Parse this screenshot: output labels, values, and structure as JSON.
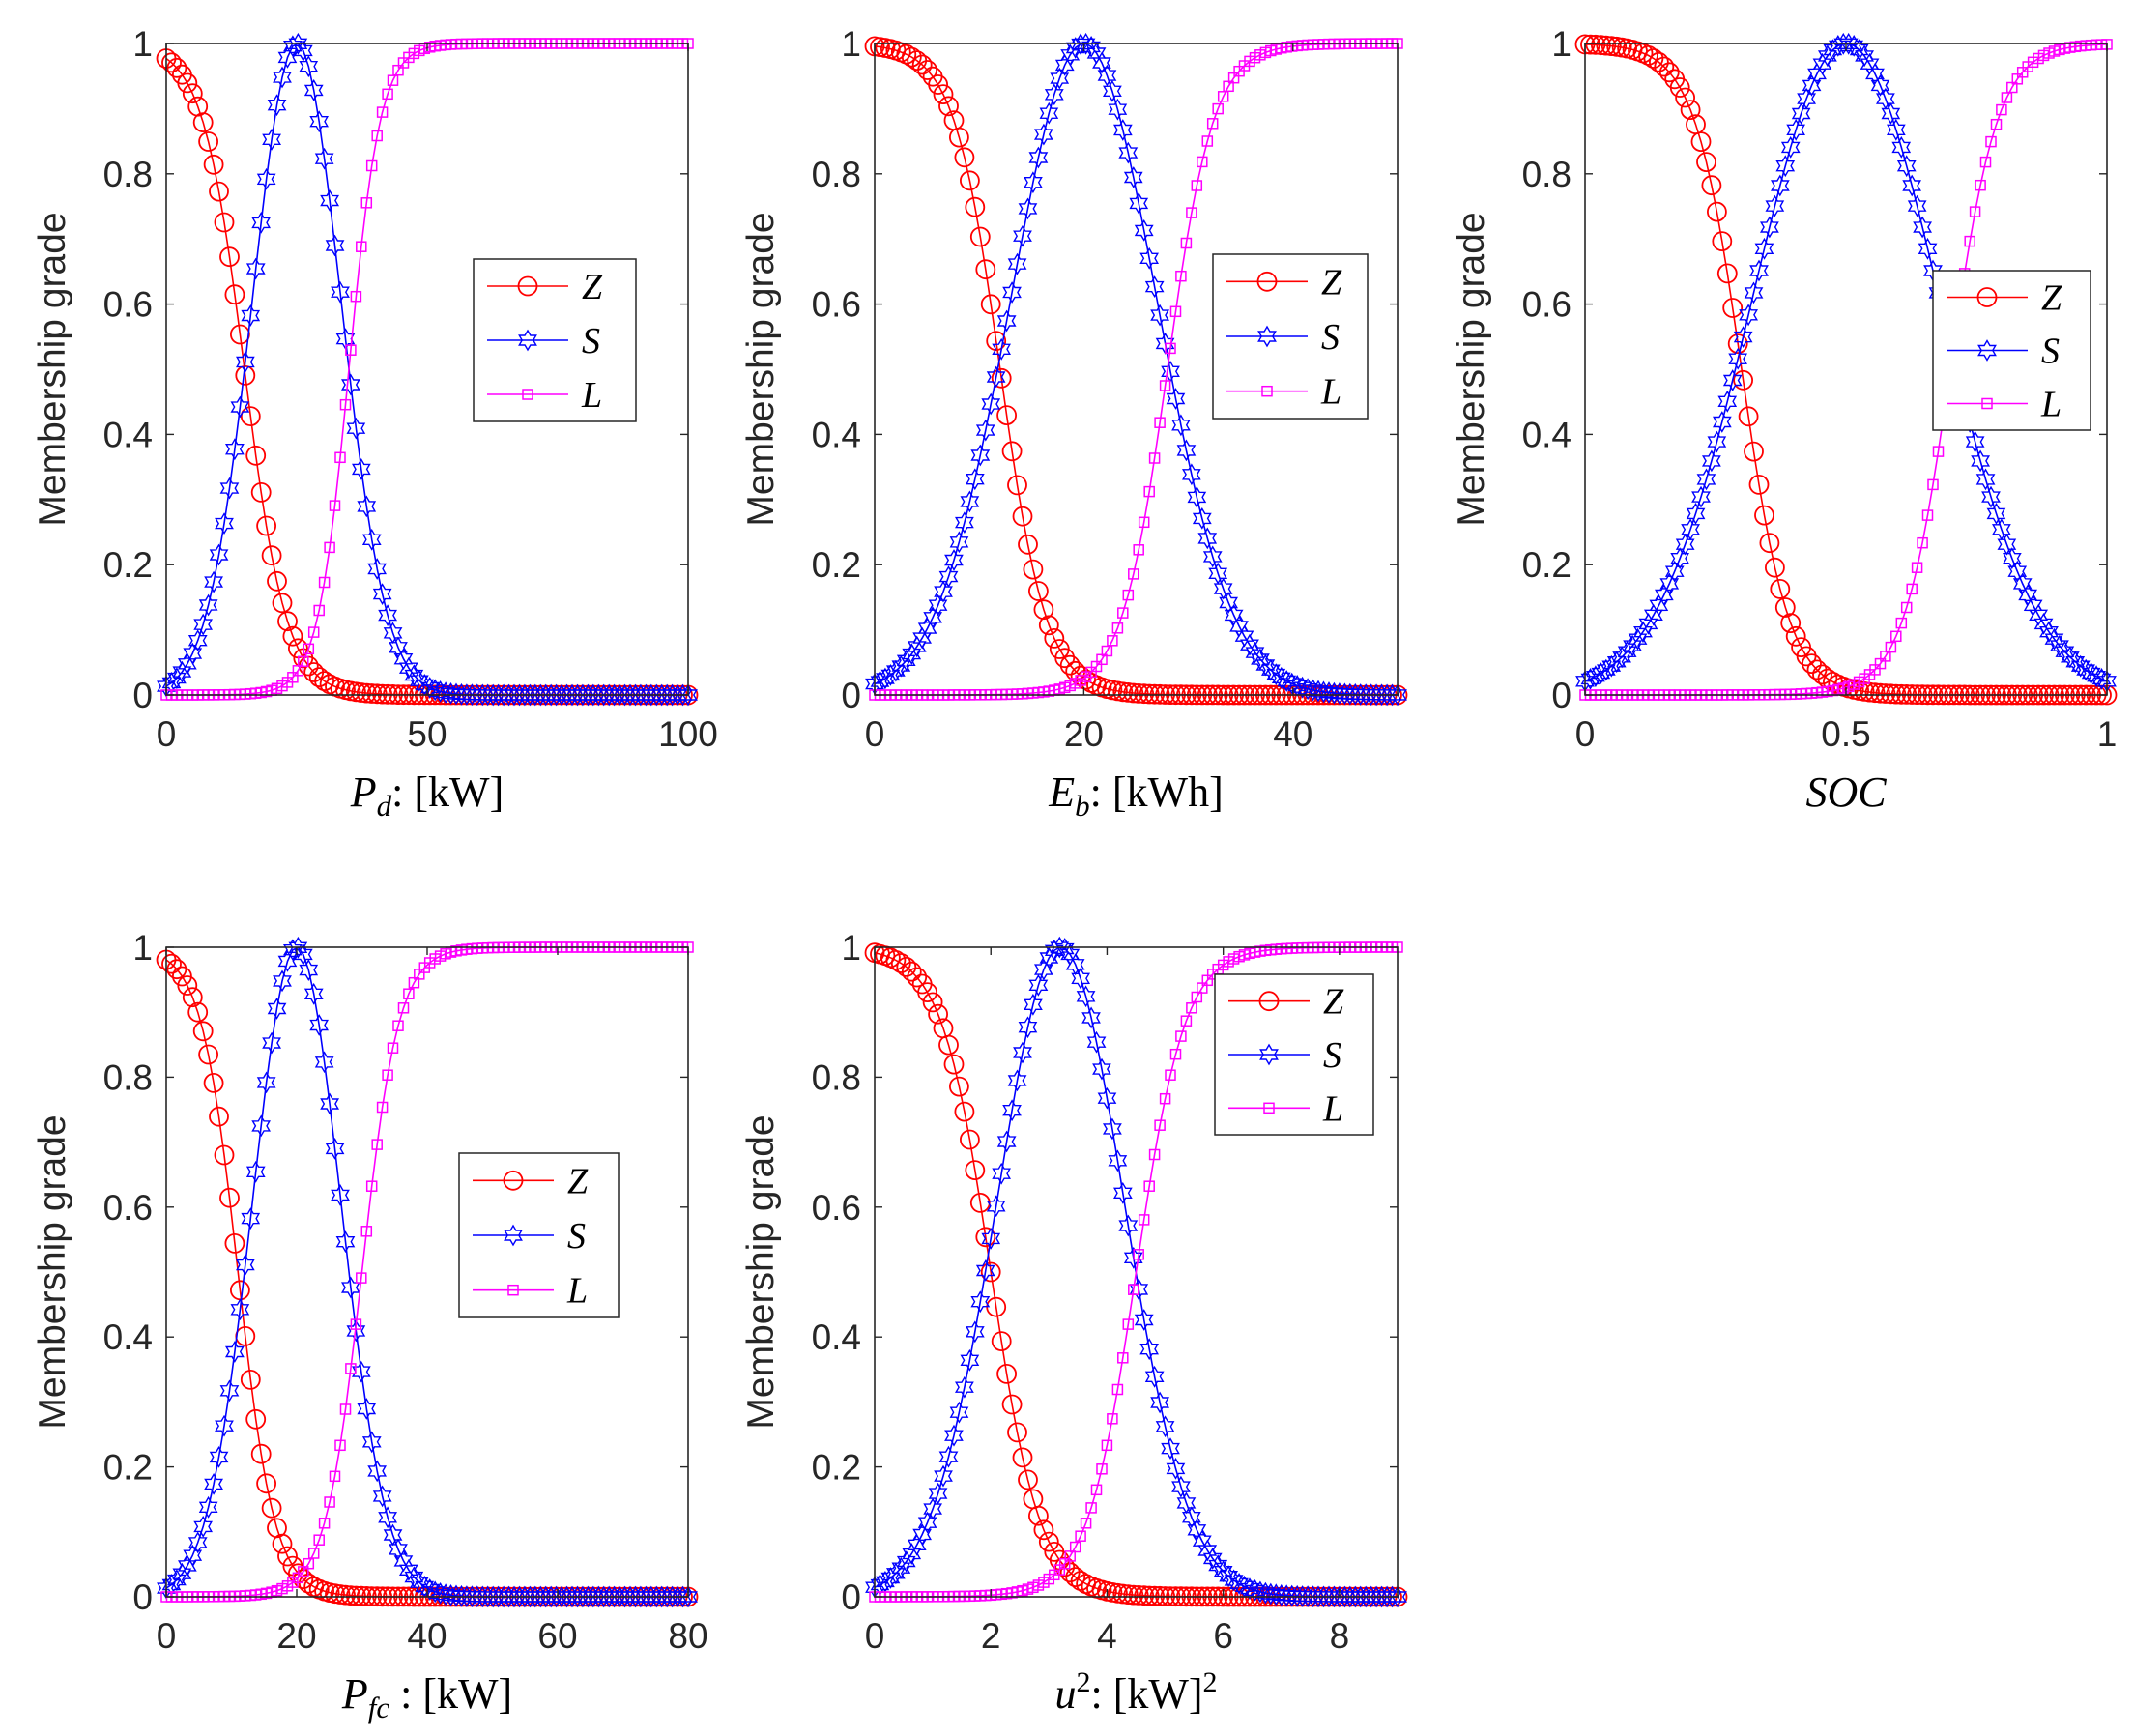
{
  "colors": {
    "Z": "#ff0000",
    "S": "#0000ff",
    "L": "#ff00ff",
    "axes": "#262626"
  },
  "chart_data": [
    {
      "type": "line",
      "title": "",
      "ylabel": "Membership grade",
      "xlabel": {
        "symbol": "P",
        "sub": "d",
        "rest": ": [kW]"
      },
      "xlim": [
        0,
        100
      ],
      "ylim": [
        0,
        1
      ],
      "xticks": [
        0,
        50,
        100
      ],
      "xtick_labels": [
        "0",
        "50",
        "100"
      ],
      "yticks": [
        0,
        0.2,
        0.4,
        0.6,
        0.8,
        1
      ],
      "ytick_labels": [
        "0",
        "0.2",
        "0.4",
        "0.6",
        "0.8",
        "1"
      ],
      "grid": false,
      "legend_position": "center-right",
      "series": [
        {
          "name": "Z",
          "marker": "circle",
          "function": "zmf",
          "params": [
            0,
            15,
            4
          ],
          "n_points": 100
        },
        {
          "name": "S",
          "marker": "hexagram",
          "function": "gaussmf",
          "params": [
            25,
            8.5
          ],
          "n_points": 100
        },
        {
          "name": "L",
          "marker": "square",
          "function": "smf",
          "params": [
            0,
            35,
            3
          ],
          "n_points": 100
        }
      ]
    },
    {
      "type": "line",
      "title": "",
      "ylabel": "Membership grade",
      "xlabel": {
        "symbol": "E",
        "sub": "b",
        "rest": ": [kWh]"
      },
      "xlim": [
        0,
        50
      ],
      "ylim": [
        0,
        1
      ],
      "xticks": [
        0,
        20,
        40
      ],
      "xtick_labels": [
        "0",
        "20",
        "40"
      ],
      "yticks": [
        0,
        0.2,
        0.4,
        0.6,
        0.8,
        1
      ],
      "ytick_labels": [
        "0",
        "0.2",
        "0.4",
        "0.6",
        "0.8",
        "1"
      ],
      "grid": false,
      "legend_position": "center-right",
      "series": [
        {
          "name": "Z",
          "marker": "circle",
          "function": "zmf",
          "params": [
            0,
            12,
            2.2
          ],
          "n_points": 100
        },
        {
          "name": "S",
          "marker": "hexagram",
          "function": "gaussmf",
          "params": [
            20,
            7
          ],
          "n_points": 100
        },
        {
          "name": "L",
          "marker": "square",
          "function": "smf",
          "params": [
            0,
            28,
            2.2
          ],
          "n_points": 100
        }
      ]
    },
    {
      "type": "line",
      "title": "",
      "ylabel": "Membership grade",
      "xlabel": {
        "symbol": "SOC",
        "sub": "",
        "rest": ""
      },
      "xlim": [
        0,
        1
      ],
      "ylim": [
        0,
        1
      ],
      "xticks": [
        0,
        0.5,
        1
      ],
      "xtick_labels": [
        "0",
        "0.5",
        "1"
      ],
      "yticks": [
        0,
        0.2,
        0.4,
        0.6,
        0.8,
        1
      ],
      "ytick_labels": [
        "0",
        "0.2",
        "0.4",
        "0.6",
        "0.8",
        "1"
      ],
      "grid": false,
      "legend_position": "right",
      "series": [
        {
          "name": "Z",
          "marker": "circle",
          "function": "zmf",
          "params": [
            0,
            0.3,
            0.045
          ],
          "n_points": 100
        },
        {
          "name": "S",
          "marker": "hexagram",
          "function": "gaussmf",
          "params": [
            0.5,
            0.18
          ],
          "n_points": 100
        },
        {
          "name": "L",
          "marker": "square",
          "function": "smf",
          "params": [
            0,
            0.7,
            0.045
          ],
          "n_points": 100
        }
      ]
    },
    {
      "type": "line",
      "title": "",
      "ylabel": "Membership grade",
      "xlabel": {
        "symbol": "P",
        "sub": "fc",
        "rest": " : [kW]"
      },
      "xlim": [
        0,
        80
      ],
      "ylim": [
        0,
        1
      ],
      "xticks": [
        0,
        20,
        40,
        60,
        80
      ],
      "xtick_labels": [
        "0",
        "20",
        "40",
        "60",
        "80"
      ],
      "yticks": [
        0,
        0.2,
        0.4,
        0.6,
        0.8,
        1
      ],
      "ytick_labels": [
        "0",
        "0.2",
        "0.4",
        "0.6",
        "0.8",
        "1"
      ],
      "grid": false,
      "legend_position": "center-right",
      "series": [
        {
          "name": "Z",
          "marker": "circle",
          "function": "zmf",
          "params": [
            0,
            11,
            2.8
          ],
          "n_points": 100
        },
        {
          "name": "S",
          "marker": "hexagram",
          "function": "gaussmf",
          "params": [
            20,
            6.8
          ],
          "n_points": 100
        },
        {
          "name": "L",
          "marker": "square",
          "function": "smf",
          "params": [
            0,
            30,
            2.8
          ],
          "n_points": 100
        }
      ]
    },
    {
      "type": "line",
      "title": "",
      "ylabel": "Membership grade",
      "xlabel": {
        "symbol": "u",
        "sup": "2",
        "rest": ": [kW]",
        "rest_sup": "2"
      },
      "xlim": [
        0,
        9
      ],
      "ylim": [
        0,
        1
      ],
      "xticks": [
        0,
        2,
        4,
        6,
        8
      ],
      "xtick_labels": [
        "0",
        "2",
        "4",
        "6",
        "8"
      ],
      "yticks": [
        0,
        0.2,
        0.4,
        0.6,
        0.8,
        1
      ],
      "ytick_labels": [
        "0",
        "0.2",
        "0.4",
        "0.6",
        "0.8",
        "1"
      ],
      "grid": false,
      "legend_position": "top-right",
      "series": [
        {
          "name": "Z",
          "marker": "circle",
          "function": "zmf",
          "params": [
            0,
            2,
            0.42
          ],
          "n_points": 100
        },
        {
          "name": "S",
          "marker": "hexagram",
          "function": "gaussmf",
          "params": [
            3.2,
            1.1
          ],
          "n_points": 100
        },
        {
          "name": "L",
          "marker": "square",
          "function": "smf",
          "params": [
            0,
            4.5,
            0.42
          ],
          "n_points": 100
        }
      ]
    }
  ]
}
